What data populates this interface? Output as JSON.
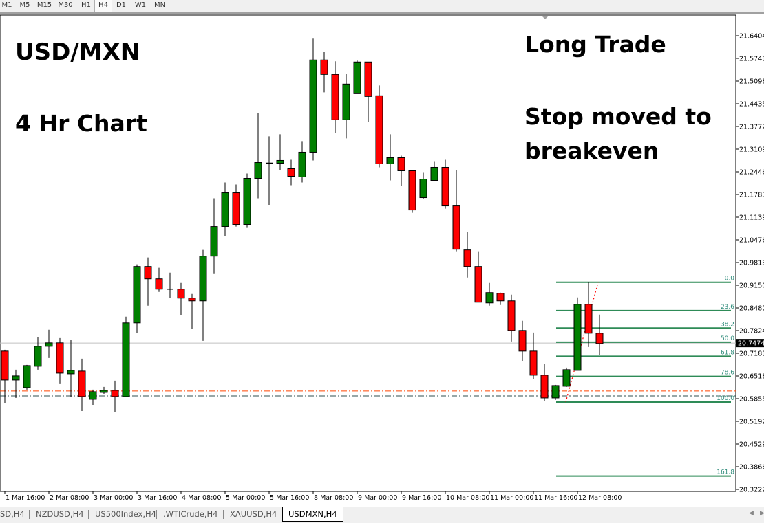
{
  "toolbar": {
    "timeframes": [
      "M1",
      "M5",
      "M15",
      "M30",
      "H1",
      "H4",
      "D1",
      "W1",
      "MN"
    ],
    "active": "H4"
  },
  "annotations": {
    "symbol": "USD/MXN",
    "timeframe": "4 Hr Chart",
    "trade": "Long Trade",
    "stop_line1": "Stop moved to",
    "stop_line2": "breakeven"
  },
  "tabs": [
    {
      "label": "SD,H4",
      "active": false
    },
    {
      "label": "NZDUSD,H4",
      "active": false
    },
    {
      "label": "US500Index,H4",
      "active": false
    },
    {
      "label": ".WTICrude,H4",
      "active": false
    },
    {
      "label": "XAUUSD,H4",
      "active": false
    },
    {
      "label": "USDMXN,H4",
      "active": true
    }
  ],
  "colors": {
    "bull": "#008000",
    "bear": "#ff0000",
    "fib": "#2e8b57",
    "fib_label": "#2e8b7a",
    "entry_line": "#ff4500",
    "stop_line": "#2f4f4f",
    "bid_line": "#c0c0c0"
  },
  "chart_data": {
    "type": "candlestick",
    "symbol": "USDMXN",
    "timeframe": "H4",
    "ylim": [
      20.32225,
      21.64045
    ],
    "y_ticks": [
      "21.64045",
      "21.57415",
      "21.50980",
      "21.44350",
      "21.37720",
      "21.31090",
      "21.24460",
      "21.17830",
      "21.11395",
      "21.04765",
      "20.98135",
      "20.91505",
      "20.84875",
      "20.78245",
      "20.71810",
      "20.65180",
      "20.58550",
      "20.51920",
      "20.45290",
      "20.38660",
      "20.32225"
    ],
    "x_ticks": [
      "1 Mar 16:00",
      "2 Mar 08:00",
      "3 Mar 00:00",
      "3 Mar 16:00",
      "4 Mar 08:00",
      "5 Mar 00:00",
      "5 Mar 16:00",
      "8 Mar 08:00",
      "9 Mar 00:00",
      "9 Mar 16:00",
      "10 Mar 08:00",
      "11 Mar 00:00",
      "11 Mar 16:00",
      "12 Mar 08:00"
    ],
    "x_tick_every_n_candles": 4,
    "bid": "20.74742",
    "candles_ohlc": [
      [
        20.724,
        20.728,
        20.572,
        20.64
      ],
      [
        20.64,
        20.67,
        20.588,
        20.652
      ],
      [
        20.618,
        20.684,
        20.612,
        20.682
      ],
      [
        20.68,
        20.764,
        20.67,
        20.738
      ],
      [
        20.738,
        20.786,
        20.704,
        20.748
      ],
      [
        20.748,
        20.762,
        20.628,
        20.66
      ],
      [
        20.658,
        20.756,
        20.592,
        20.668
      ],
      [
        20.666,
        20.702,
        20.55,
        20.592
      ],
      [
        20.584,
        20.612,
        20.566,
        20.606
      ],
      [
        20.604,
        20.62,
        20.598,
        20.61
      ],
      [
        20.61,
        20.638,
        20.546,
        20.592
      ],
      [
        20.592,
        20.824,
        20.592,
        20.806
      ],
      [
        20.806,
        20.976,
        20.776,
        20.97
      ],
      [
        20.97,
        20.996,
        20.856,
        20.934
      ],
      [
        20.934,
        20.966,
        20.896,
        20.904
      ],
      [
        20.904,
        20.952,
        20.878,
        20.904
      ],
      [
        20.904,
        20.922,
        20.828,
        20.878
      ],
      [
        20.878,
        20.89,
        20.788,
        20.87
      ],
      [
        20.87,
        21.018,
        20.754,
        21.0
      ],
      [
        21.0,
        21.168,
        20.95,
        21.086
      ],
      [
        21.086,
        21.214,
        21.058,
        21.184
      ],
      [
        21.184,
        21.208,
        21.086,
        21.092
      ],
      [
        21.092,
        21.24,
        21.082,
        21.226
      ],
      [
        21.226,
        21.416,
        21.168,
        21.272
      ],
      [
        21.27,
        21.348,
        21.148,
        21.27
      ],
      [
        21.27,
        21.354,
        21.25,
        21.278
      ],
      [
        21.254,
        21.28,
        21.206,
        21.232
      ],
      [
        21.23,
        21.334,
        21.214,
        21.302
      ],
      [
        21.302,
        21.632,
        21.278,
        21.57
      ],
      [
        21.57,
        21.594,
        21.476,
        21.528
      ],
      [
        21.528,
        21.566,
        21.358,
        21.396
      ],
      [
        21.396,
        21.53,
        21.342,
        21.5
      ],
      [
        21.472,
        21.568,
        21.472,
        21.564
      ],
      [
        21.564,
        21.564,
        21.39,
        21.464
      ],
      [
        21.466,
        21.496,
        21.258,
        21.268
      ],
      [
        21.268,
        21.354,
        21.22,
        21.286
      ],
      [
        21.286,
        21.292,
        21.204,
        21.248
      ],
      [
        21.248,
        21.248,
        21.126,
        21.134
      ],
      [
        21.17,
        21.244,
        21.166,
        21.224
      ],
      [
        21.22,
        21.276,
        21.22,
        21.258
      ],
      [
        21.258,
        21.28,
        21.138,
        21.146
      ],
      [
        21.146,
        21.25,
        21.014,
        21.02
      ],
      [
        21.018,
        21.07,
        20.938,
        20.97
      ],
      [
        20.97,
        21.014,
        20.866,
        20.866
      ],
      [
        20.864,
        20.922,
        20.856,
        20.894
      ],
      [
        20.892,
        20.894,
        20.858,
        20.87
      ],
      [
        20.87,
        20.888,
        20.752,
        20.784
      ],
      [
        20.784,
        20.812,
        20.694,
        20.724
      ],
      [
        20.724,
        20.778,
        20.642,
        20.654
      ],
      [
        20.654,
        20.686,
        20.58,
        20.588
      ],
      [
        20.588,
        20.626,
        20.582,
        20.624
      ],
      [
        20.622,
        20.676,
        20.62,
        20.67
      ],
      [
        20.668,
        20.88,
        20.668,
        20.86
      ],
      [
        20.86,
        20.924,
        20.736,
        20.776
      ],
      [
        20.776,
        20.83,
        20.712,
        20.746
      ]
    ],
    "fibonacci": {
      "high": 20.924,
      "low": 20.576,
      "levels": [
        "0.0",
        "23.6",
        "38.2",
        "50.0",
        "61.8",
        "78.6",
        "100.0",
        "161.8"
      ],
      "start_candle": 51,
      "end_candle": 54
    },
    "horizontal_lines": [
      {
        "price": 20.608,
        "style": "dash-dot",
        "color": "#ff4500"
      },
      {
        "price": 20.594,
        "style": "dash-dot",
        "color": "#2f4f4f"
      }
    ]
  }
}
